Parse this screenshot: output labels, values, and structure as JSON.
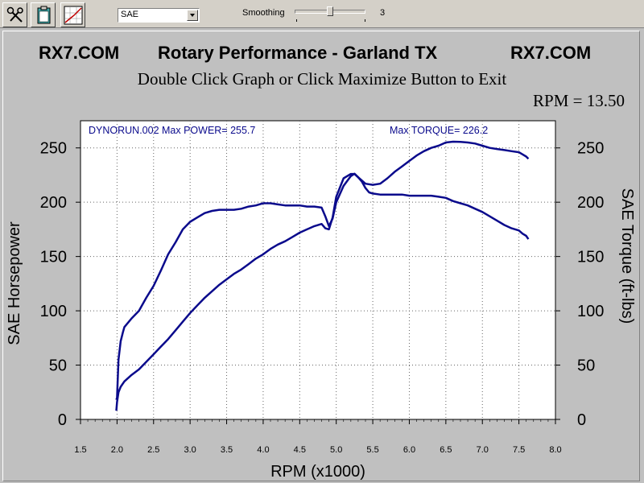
{
  "toolbar": {
    "buttons": [
      {
        "name": "tools-icon"
      },
      {
        "name": "clipboard-icon"
      },
      {
        "name": "graph-icon"
      }
    ],
    "mode_select": "SAE",
    "smoothing_label": "Smoothing",
    "smoothing_value": "3",
    "smoothing_fraction": 0.5
  },
  "header": {
    "left": "RX7.COM",
    "center": "Rotary Performance - Garland TX",
    "right": "RX7.COM",
    "subtitle": "Double Click Graph or Click Maximize Button to Exit",
    "rpm_readout": "RPM = 13.50"
  },
  "chart_data": {
    "type": "line",
    "run_label": "DYNORUN.002  Max POWER= 255.7",
    "torque_label": "Max TORQUE= 226.2",
    "xlabel": "RPM (x1000)",
    "ylabel": "SAE Horsepower",
    "y2label": "SAE Torque (ft-lbs)",
    "xlim": [
      1.5,
      8.0
    ],
    "ylim": [
      0,
      275
    ],
    "xticks": [
      "1.5",
      "2.0",
      "2.5",
      "3.0",
      "3.5",
      "4.0",
      "4.5",
      "5.0",
      "5.5",
      "6.0",
      "6.5",
      "7.0",
      "7.5",
      "8.0"
    ],
    "yticks": [
      "0",
      "50",
      "100",
      "150",
      "200",
      "250"
    ],
    "grid": true,
    "line_color": "#0a0a8c",
    "series": [
      {
        "x": [
          1.99,
          2.0,
          2.02,
          2.05,
          2.1,
          2.2,
          2.3,
          2.4,
          2.5,
          2.6,
          2.7,
          2.8,
          2.9,
          3.0,
          3.1,
          3.2,
          3.3,
          3.4,
          3.5,
          3.6,
          3.7,
          3.8,
          3.9,
          4.0,
          4.1,
          4.2,
          4.3,
          4.4,
          4.5,
          4.6,
          4.7,
          4.8,
          4.85,
          4.9,
          4.95,
          5.0,
          5.1,
          5.2,
          5.25,
          5.3,
          5.4,
          5.5,
          5.6,
          5.7,
          5.8,
          5.9,
          6.0,
          6.1,
          6.2,
          6.3,
          6.4,
          6.5,
          6.6,
          6.7,
          6.8,
          6.9,
          7.0,
          7.1,
          7.2,
          7.3,
          7.4,
          7.5,
          7.55,
          7.6,
          7.63
        ],
        "values": [
          8,
          16,
          25,
          30,
          35,
          41,
          46,
          53,
          60,
          67,
          74,
          82,
          90,
          98,
          105,
          112,
          118,
          124,
          129,
          134,
          138,
          143,
          148,
          152,
          157,
          161,
          164,
          168,
          172,
          175,
          178,
          180,
          176,
          175,
          186,
          205,
          222,
          226,
          226,
          223,
          217,
          216,
          217,
          222,
          228,
          233,
          238,
          243,
          247,
          250,
          252,
          255,
          255.7,
          255.5,
          255,
          254,
          252,
          250,
          249,
          248,
          247,
          246,
          244,
          242,
          240
        ]
      },
      {
        "x": [
          1.99,
          2.0,
          2.02,
          2.05,
          2.08,
          2.1,
          2.2,
          2.3,
          2.4,
          2.5,
          2.6,
          2.7,
          2.8,
          2.9,
          3.0,
          3.1,
          3.2,
          3.3,
          3.4,
          3.5,
          3.6,
          3.7,
          3.8,
          3.9,
          4.0,
          4.1,
          4.2,
          4.3,
          4.4,
          4.5,
          4.6,
          4.7,
          4.8,
          4.85,
          4.9,
          4.95,
          5.0,
          5.1,
          5.2,
          5.25,
          5.3,
          5.35,
          5.4,
          5.45,
          5.5,
          5.6,
          5.7,
          5.8,
          5.9,
          6.0,
          6.1,
          6.2,
          6.3,
          6.4,
          6.5,
          6.6,
          6.7,
          6.8,
          6.9,
          7.0,
          7.1,
          7.2,
          7.3,
          7.4,
          7.5,
          7.55,
          7.6,
          7.63
        ],
        "values": [
          18,
          20,
          55,
          72,
          80,
          85,
          93,
          100,
          112,
          123,
          137,
          152,
          163,
          175,
          182,
          186,
          190,
          192,
          193,
          193,
          193,
          194,
          196,
          197,
          199,
          199,
          198,
          197,
          197,
          197,
          196,
          196,
          195,
          187,
          178,
          185,
          200,
          215,
          224,
          226.2,
          223,
          219,
          213,
          209,
          208,
          207,
          207,
          207,
          207,
          206,
          206,
          206,
          206,
          205,
          204,
          201,
          199,
          197,
          194,
          191,
          187,
          183,
          179,
          176,
          174,
          171,
          169,
          166
        ]
      }
    ]
  }
}
